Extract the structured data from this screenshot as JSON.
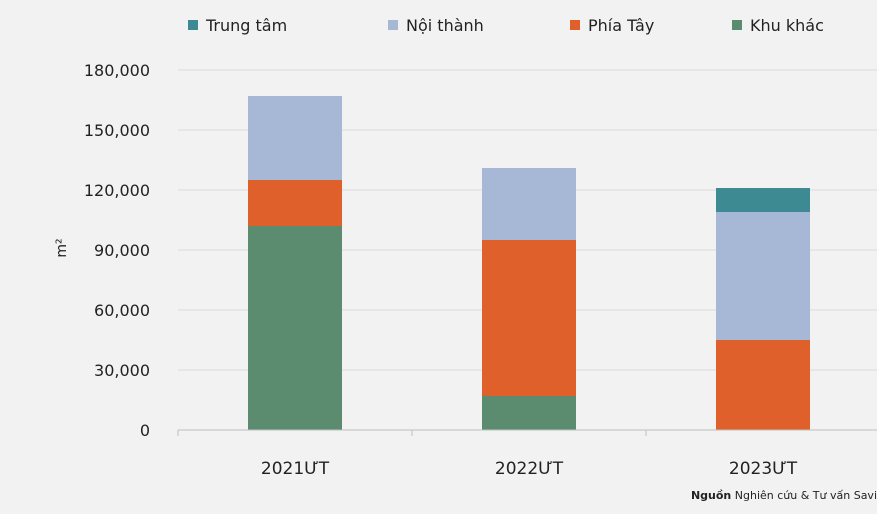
{
  "chart_data": {
    "type": "bar",
    "stacked": true,
    "categories": [
      "2021ƯT",
      "2022ƯT",
      "2023ƯT"
    ],
    "series": [
      {
        "name": "Khu khác",
        "color": "#5b8c70",
        "values": [
          102000,
          17000,
          0
        ]
      },
      {
        "name": "Phía Tây",
        "color": "#e0602c",
        "values": [
          23000,
          78000,
          45000
        ]
      },
      {
        "name": "Nội thành",
        "color": "#a7b8d6",
        "values": [
          42000,
          36000,
          64000
        ]
      },
      {
        "name": "Trung tâm",
        "color": "#3e8a93",
        "values": [
          0,
          0,
          12000
        ]
      }
    ],
    "legend_order": [
      "Trung tâm",
      "Nội thành",
      "Phía Tây",
      "Khu khác"
    ],
    "legend_position": "top",
    "ylabel": "m²",
    "ylim": [
      0,
      180000
    ],
    "yticks": [
      0,
      30000,
      60000,
      90000,
      120000,
      150000,
      180000
    ],
    "ytick_labels": [
      "0",
      "30,000",
      "60,000",
      "90,000",
      "120,000",
      "150,000",
      "180,000"
    ],
    "grid": true,
    "source_label": "Nguồn",
    "source_text": "Nghiên cứu & Tư vấn Savi"
  }
}
